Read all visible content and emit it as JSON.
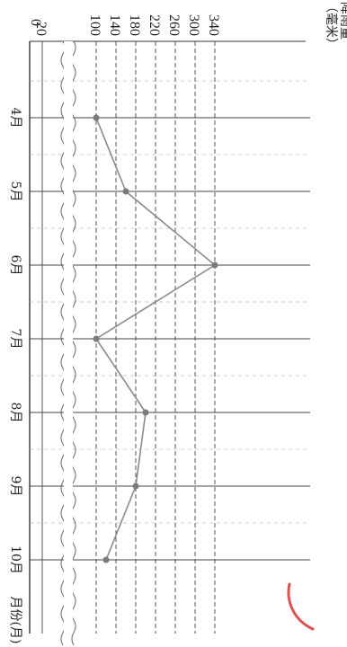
{
  "chart_data": {
    "type": "line",
    "title": "",
    "orientation": "rotated-90-cw",
    "ylabel_line1": "降雨量",
    "ylabel_line2": "（毫米）",
    "xlabel": "月份(月)",
    "categories": [
      "4月",
      "5月",
      "6月",
      "7月",
      "8月",
      "9月",
      "10月"
    ],
    "values": [
      100,
      160,
      340,
      100,
      200,
      180,
      120
    ],
    "y_ticks": [
      0,
      20,
      100,
      140,
      180,
      220,
      260,
      300,
      340
    ],
    "y_axis_break": true,
    "grid": true,
    "line_color": "#8a8a8a",
    "point_color": "#7a7a7a",
    "grid_color": "#555555",
    "mark_color": "#e05050"
  }
}
